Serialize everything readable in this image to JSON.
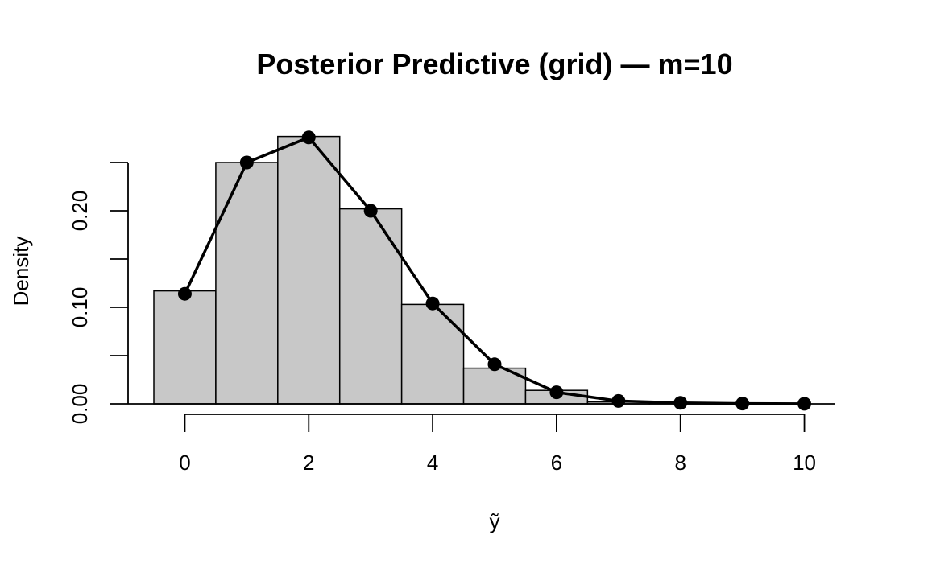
{
  "chart_data": {
    "type": "bar",
    "title": "Posterior Predictive (grid) — m=10",
    "xlabel": "ỹ",
    "ylabel": "Density",
    "x": [
      0,
      1,
      2,
      3,
      4,
      5,
      6,
      7,
      8,
      9,
      10
    ],
    "histogram": {
      "bin_edges": [
        -0.5,
        0.5,
        1.5,
        2.5,
        3.5,
        4.5,
        5.5,
        6.5,
        7.5,
        8.5,
        9.5,
        10.5
      ],
      "values": [
        0.117,
        0.25,
        0.277,
        0.202,
        0.103,
        0.037,
        0.014,
        0.002,
        0.0005,
        0.0002,
        0.0
      ]
    },
    "series": [
      {
        "type": "line",
        "values": [
          0.114,
          0.25,
          0.276,
          0.2,
          0.104,
          0.041,
          0.012,
          0.003,
          0.001,
          0.0003,
          0.0001
        ]
      }
    ],
    "xlim": [
      -0.5,
      10.5
    ],
    "ylim": [
      0,
      0.25
    ],
    "x_ticks": [
      0,
      2,
      4,
      6,
      8,
      10
    ],
    "y_ticks": [
      0,
      0.05,
      0.1,
      0.15,
      0.2,
      0.25
    ],
    "y_tick_labels": [
      {
        "value": 0,
        "label": "0.00"
      },
      {
        "value": 0.1,
        "label": "0.10"
      },
      {
        "value": 0.2,
        "label": "0.20"
      }
    ],
    "grid": false,
    "legend": "none"
  }
}
